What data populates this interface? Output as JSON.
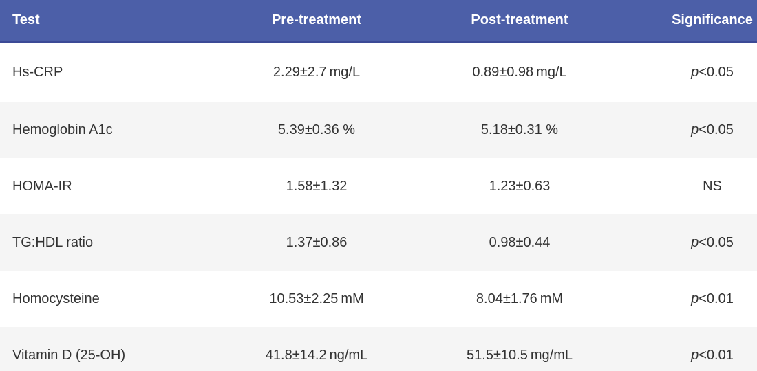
{
  "chart_data": {
    "type": "table",
    "columns": [
      "Test",
      "Pre-treatment",
      "Post-treatment",
      "Significance"
    ],
    "rows": [
      {
        "test": "Hs-CRP",
        "pre": "2.29±2.7 mg/L",
        "post": "0.89±0.98 mg/L",
        "sig_italic": "p",
        "sig_text": "<0.05",
        "sig_full": "p<0.05"
      },
      {
        "test": "Hemoglobin A1c",
        "pre": "5.39±0.36 %",
        "post": "5.18±0.31 %",
        "sig_italic": "p",
        "sig_text": "<0.05",
        "sig_full": "p<0.05"
      },
      {
        "test": "HOMA-IR",
        "pre": "1.58±1.32",
        "post": "1.23±0.63",
        "sig_italic": "",
        "sig_text": "NS",
        "sig_full": "NS"
      },
      {
        "test": "TG:HDL ratio",
        "pre": "1.37±0.86",
        "post": "0.98±0.44",
        "sig_italic": "p",
        "sig_text": "<0.05",
        "sig_full": "p<0.05"
      },
      {
        "test": "Homocysteine",
        "pre": "10.53±2.25 mM",
        "post": "8.04±1.76 mM",
        "sig_italic": "p",
        "sig_text": "<0.01",
        "sig_full": "p<0.01"
      },
      {
        "test": "Vitamin D (25-OH)",
        "pre": "41.8±14.2 ng/mL",
        "post": "51.5±10.5 mg/mL",
        "sig_italic": "p",
        "sig_text": "<0.01",
        "sig_full": "p<0.01"
      }
    ]
  },
  "colors": {
    "header_bg": "#4c5fa8",
    "header_border": "#3b4a96",
    "header_text": "#ffffff",
    "row_alt": "#f5f5f5",
    "body_text": "#333333"
  }
}
